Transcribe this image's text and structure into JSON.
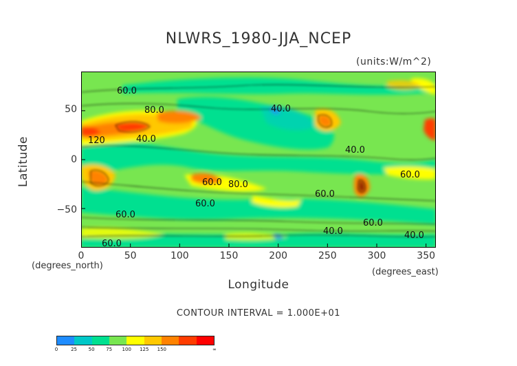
{
  "chart_data": {
    "type": "heatmap",
    "title": "NLWRS_1980-JJA_NCEP",
    "units": "(units:W/m^2)",
    "xlabel": "Longitude",
    "ylabel": "Latitude",
    "x_unit_note": "(degrees_east)",
    "y_unit_note": "(degrees_north)",
    "xlim": [
      0,
      360
    ],
    "ylim": [
      -90,
      90
    ],
    "x_ticks": [
      0,
      50,
      100,
      150,
      200,
      250,
      300,
      350
    ],
    "y_ticks": [
      50,
      0,
      -50
    ],
    "y_tick_labels": [
      "50",
      "0",
      "−50"
    ],
    "contour_interval_text": "CONTOUR INTERVAL = 1.000E+01",
    "contour_labels": [
      "60.0",
      "80.0",
      "40.0",
      "120",
      "40.0",
      "60.0",
      "80.0",
      "60.0",
      "60.0",
      "60.0",
      "40.0",
      "60.0",
      "60.0",
      "40.0",
      "60.0",
      "40.0"
    ],
    "colorbar": {
      "colors": [
        "#1e8cff",
        "#00c8c8",
        "#00e090",
        "#78e650",
        "#ffff00",
        "#ffc800",
        "#ff8200",
        "#ff3c00",
        "#ff0000"
      ],
      "tick_labels": [
        "0",
        "25",
        "50",
        "75",
        "100",
        "125",
        "150",
        "∞"
      ]
    },
    "grid": false
  }
}
